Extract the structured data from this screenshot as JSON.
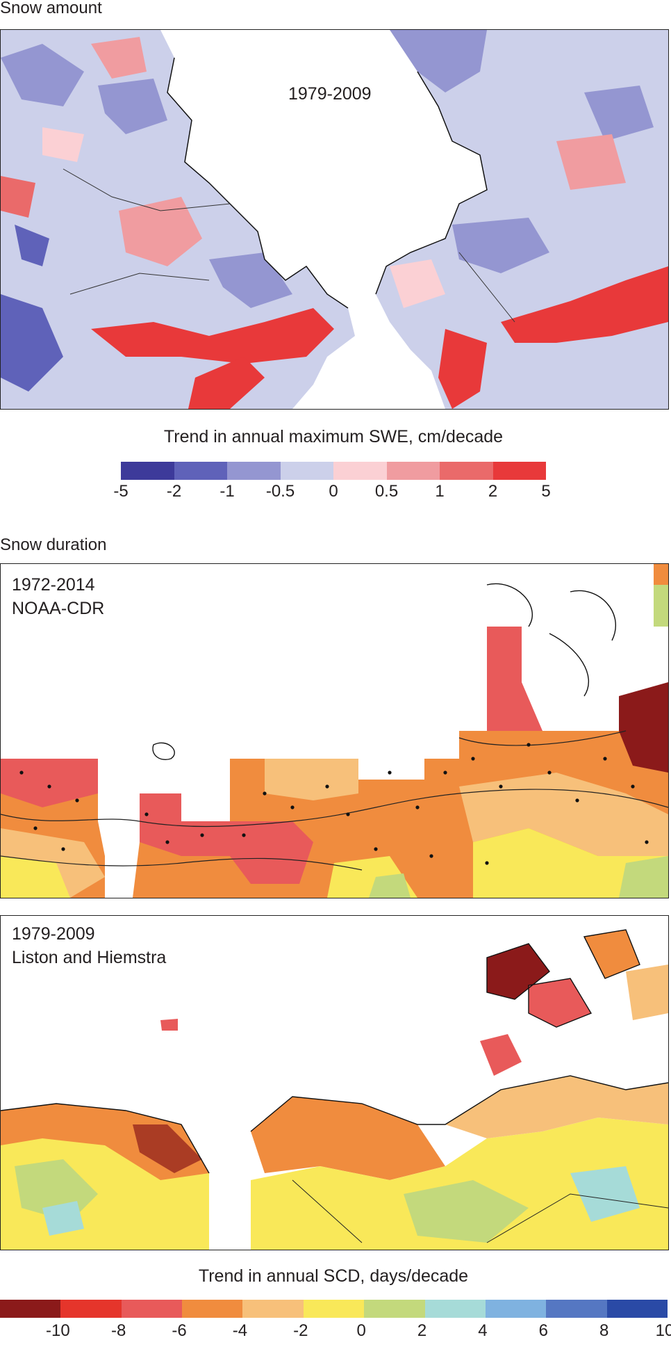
{
  "snow_amount": {
    "section_title": "Snow amount",
    "period_label": "1979-2009",
    "legend": {
      "title": "Trend in annual maximum SWE, cm/decade",
      "colors": [
        "#3d3a9a",
        "#5f62b9",
        "#9496d1",
        "#ccd0ea",
        "#fbd0d4",
        "#f09ca0",
        "#ea6a6a",
        "#e8393a"
      ],
      "ticks": [
        "-5",
        "-2",
        "-1",
        "-0.5",
        "0",
        "0.5",
        "1",
        "2",
        "5"
      ]
    }
  },
  "snow_duration": {
    "section_title": "Snow duration",
    "panel_noaa": {
      "period_label": "1972-2014",
      "source_label": "NOAA-CDR"
    },
    "panel_liston": {
      "period_label": "1979-2009",
      "source_label": "Liston and Hiemstra"
    },
    "legend": {
      "title": "Trend in annual SCD, days/decade",
      "colors": [
        "#8b1a1a",
        "#e5352b",
        "#e85a5a",
        "#f08c3e",
        "#f7c07a",
        "#f9e859",
        "#c3d97c",
        "#a6dbd8",
        "#7fb2e0",
        "#5577c2",
        "#2a4aa6"
      ],
      "ticks": [
        "-10",
        "-8",
        "-6",
        "-4",
        "-2",
        "0",
        "2",
        "4",
        "6",
        "8",
        "10"
      ]
    }
  }
}
